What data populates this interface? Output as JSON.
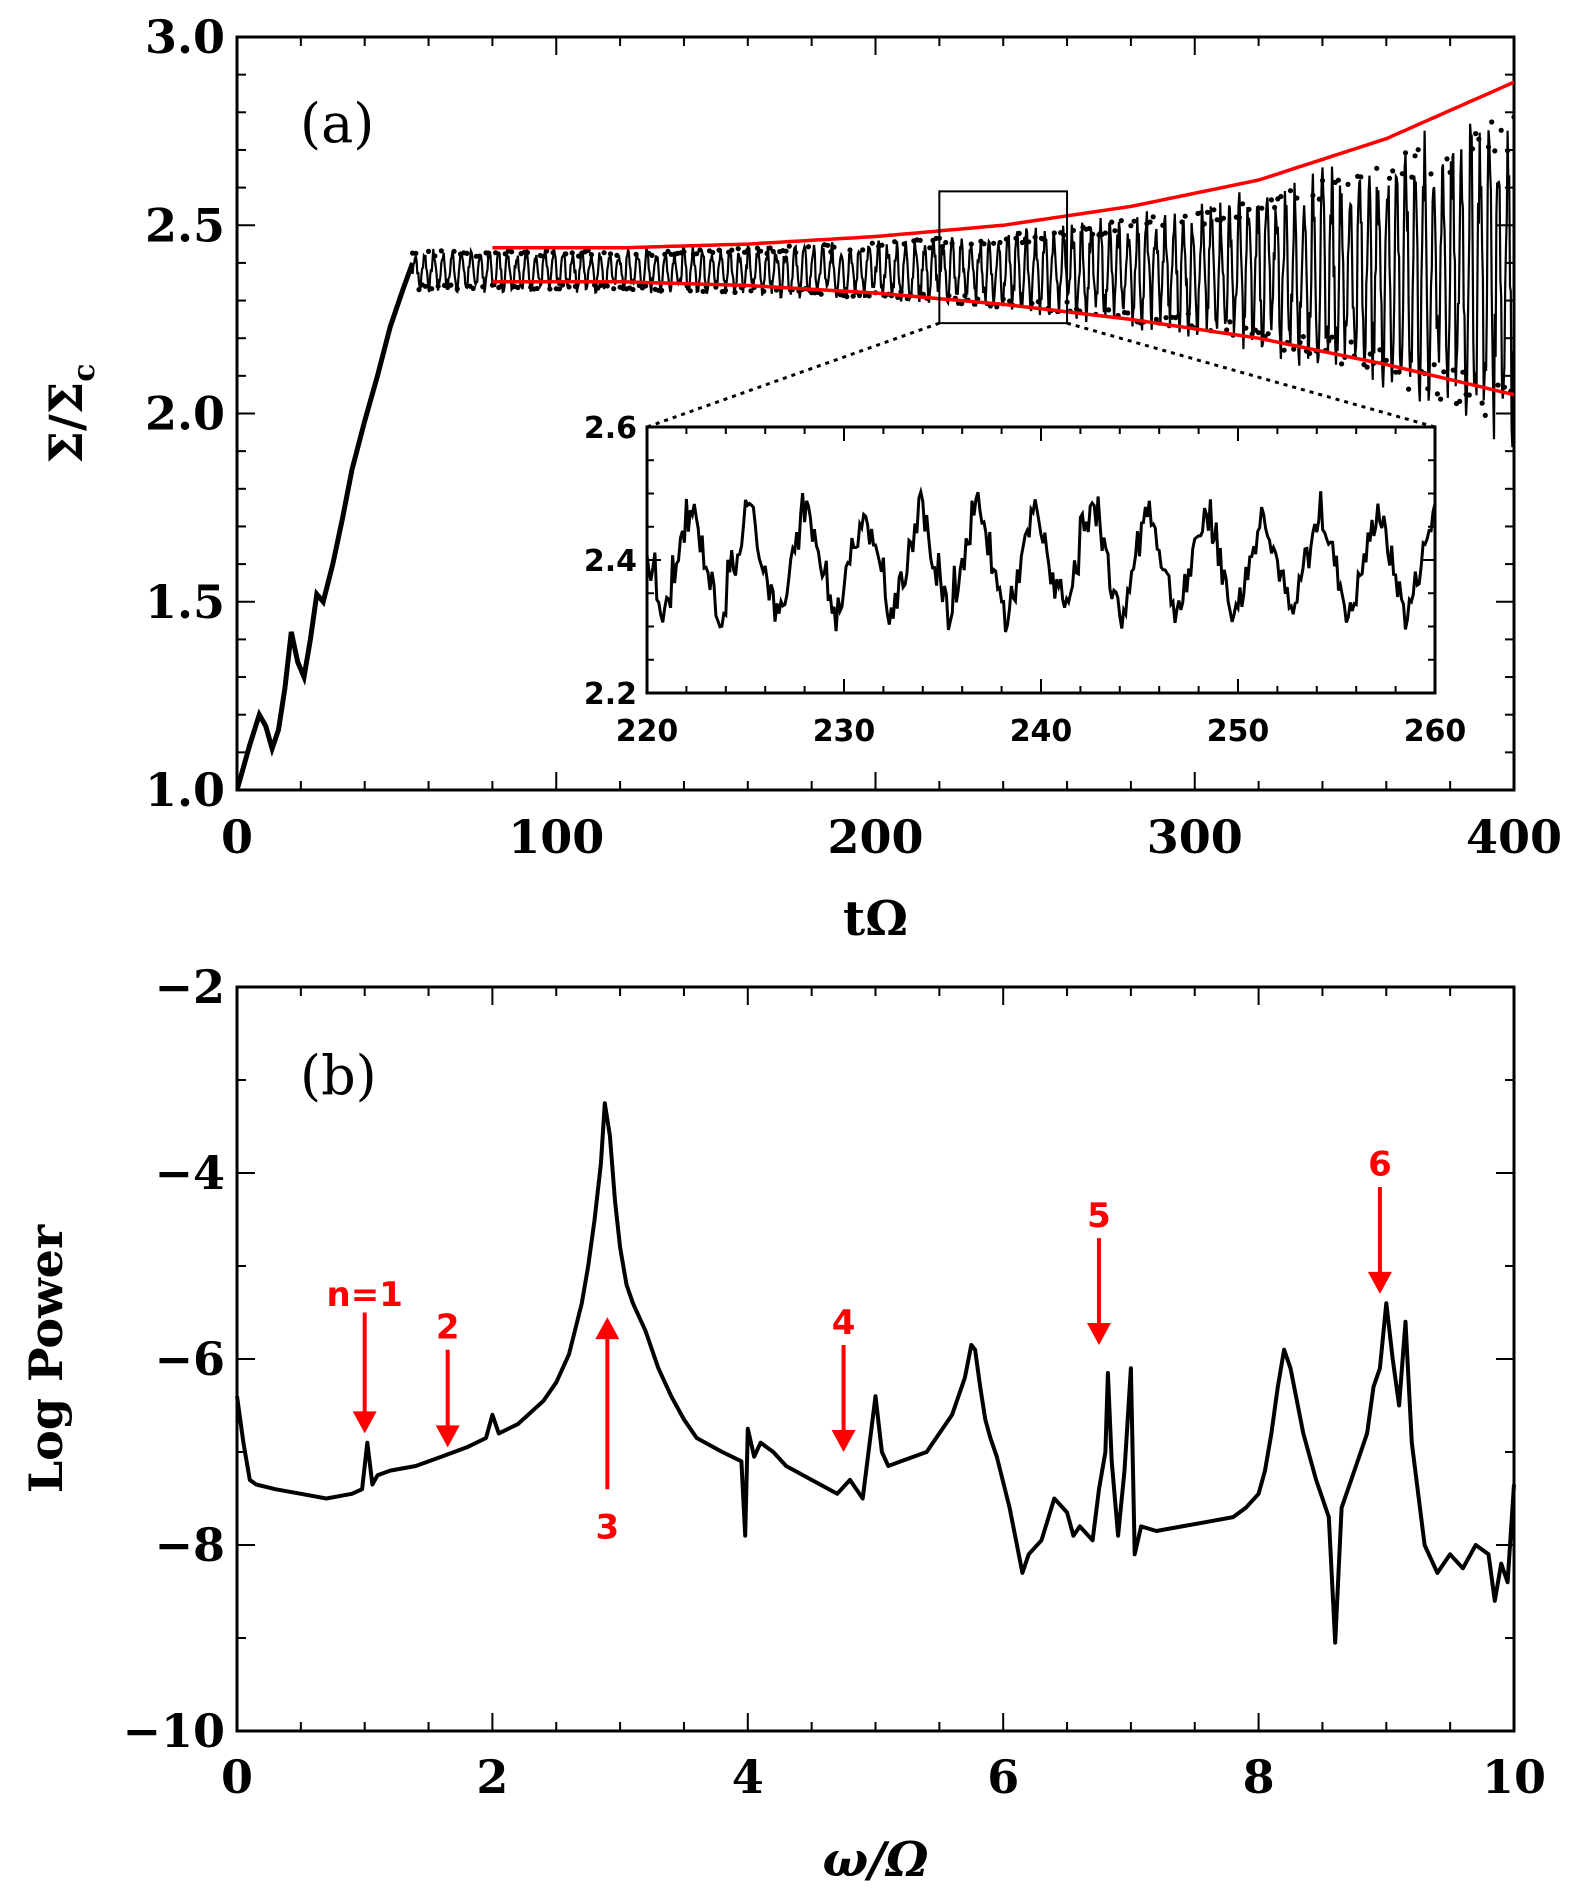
{
  "colors": {
    "data": "#000000",
    "envelope": "#ff0000",
    "annotation": "#ff0000",
    "axis": "#000000"
  },
  "chart_data": [
    {
      "type": "scatter",
      "panel_label": "(a)",
      "xlabel": "tΩ",
      "ylabel_base": "Σ/Σ",
      "ylabel_sub": "c",
      "xlim": [
        0,
        400
      ],
      "ylim": [
        1.0,
        3.0
      ],
      "xticks": [
        0,
        100,
        200,
        300,
        400
      ],
      "xtick_labels": [
        "0",
        "100",
        "200",
        "300",
        "400"
      ],
      "yticks": [
        1.0,
        1.5,
        2.0,
        2.5,
        3.0
      ],
      "ytick_labels": [
        "1.0",
        "1.5",
        "2.0",
        "2.5",
        "3.0"
      ],
      "series": [
        {
          "name": "growth",
          "x": [
            0,
            4,
            7,
            9,
            11,
            13,
            15,
            17,
            19,
            21,
            23,
            25,
            27,
            30,
            33,
            36,
            40,
            44,
            48,
            52,
            55
          ],
          "y": [
            1.0,
            1.12,
            1.2,
            1.17,
            1.11,
            1.16,
            1.27,
            1.42,
            1.34,
            1.3,
            1.4,
            1.52,
            1.5,
            1.6,
            1.72,
            1.85,
            1.98,
            2.1,
            2.23,
            2.33,
            2.4
          ]
        },
        {
          "name": "oscillation",
          "center": 2.38,
          "period": 2.9,
          "x_start": 55,
          "x_end": 400,
          "amplitude_x": [
            55,
            100,
            150,
            200,
            250,
            300,
            350,
            400
          ],
          "amplitude_y": [
            0.05,
            0.05,
            0.055,
            0.07,
            0.1,
            0.15,
            0.25,
            0.4
          ]
        },
        {
          "name": "upper envelope",
          "x": [
            80,
            120,
            160,
            200,
            240,
            280,
            320,
            360,
            400
          ],
          "y": [
            2.44,
            2.44,
            2.45,
            2.47,
            2.5,
            2.55,
            2.62,
            2.73,
            2.88
          ]
        },
        {
          "name": "lower envelope",
          "x": [
            80,
            120,
            160,
            200,
            240,
            280,
            320,
            360,
            400
          ],
          "y": [
            2.35,
            2.35,
            2.34,
            2.32,
            2.29,
            2.25,
            2.2,
            2.13,
            2.05
          ]
        }
      ],
      "zoom_box": {
        "x": [
          220,
          260
        ],
        "y": [
          2.24,
          2.59
        ]
      },
      "inset": {
        "xlim": [
          220,
          260
        ],
        "ylim": [
          2.2,
          2.6
        ],
        "xticks": [
          220,
          230,
          240,
          250,
          260
        ],
        "xtick_labels": [
          "220",
          "230",
          "240",
          "250",
          "260"
        ],
        "yticks": [
          2.2,
          2.4,
          2.6
        ],
        "ytick_labels": [
          "2.2",
          "2.4",
          "2.6"
        ],
        "period": 2.9,
        "center": 2.395,
        "high": 2.5,
        "low": 2.29
      }
    },
    {
      "type": "line",
      "panel_label": "(b)",
      "xlabel": "ω/Ω",
      "ylabel": "Log Power",
      "xlim": [
        0,
        10
      ],
      "ylim": [
        -10,
        -2
      ],
      "xticks": [
        0,
        2,
        4,
        6,
        8,
        10
      ],
      "xtick_labels": [
        "0",
        "2",
        "4",
        "6",
        "8",
        "10"
      ],
      "yticks": [
        -10,
        -8,
        -6,
        -4,
        -2
      ],
      "ytick_labels": [
        "−10",
        "−8",
        "−6",
        "−4",
        "−2"
      ],
      "x": [
        0.0,
        0.05,
        0.1,
        0.15,
        0.3,
        0.5,
        0.7,
        0.9,
        0.98,
        1.02,
        1.06,
        1.1,
        1.2,
        1.4,
        1.6,
        1.8,
        1.95,
        2.0,
        2.05,
        2.2,
        2.4,
        2.5,
        2.6,
        2.7,
        2.75,
        2.8,
        2.85,
        2.88,
        2.92,
        2.96,
        3.0,
        3.05,
        3.1,
        3.2,
        3.3,
        3.4,
        3.5,
        3.6,
        3.8,
        3.95,
        3.98,
        4.0,
        4.05,
        4.1,
        4.2,
        4.3,
        4.5,
        4.7,
        4.8,
        4.9,
        5.0,
        5.05,
        5.1,
        5.2,
        5.4,
        5.6,
        5.7,
        5.75,
        5.78,
        5.82,
        5.86,
        5.9,
        5.95,
        6.05,
        6.1,
        6.15,
        6.2,
        6.3,
        6.4,
        6.5,
        6.55,
        6.6,
        6.7,
        6.75,
        6.8,
        6.82,
        6.85,
        6.9,
        6.95,
        7.0,
        7.03,
        7.08,
        7.2,
        7.4,
        7.6,
        7.8,
        7.9,
        8.0,
        8.05,
        8.1,
        8.15,
        8.2,
        8.25,
        8.35,
        8.45,
        8.5,
        8.55,
        8.6,
        8.65,
        8.75,
        8.85,
        8.9,
        8.95,
        9.0,
        9.05,
        9.1,
        9.15,
        9.2,
        9.3,
        9.4,
        9.5,
        9.6,
        9.7,
        9.8,
        9.85,
        9.9,
        9.95,
        10.0
      ],
      "y": [
        -6.4,
        -6.9,
        -7.3,
        -7.35,
        -7.4,
        -7.45,
        -7.5,
        -7.45,
        -7.4,
        -6.9,
        -7.35,
        -7.25,
        -7.2,
        -7.15,
        -7.05,
        -6.95,
        -6.85,
        -6.6,
        -6.8,
        -6.7,
        -6.45,
        -6.25,
        -5.95,
        -5.4,
        -5.0,
        -4.5,
        -3.9,
        -3.25,
        -3.6,
        -4.3,
        -4.8,
        -5.2,
        -5.4,
        -5.7,
        -6.1,
        -6.4,
        -6.65,
        -6.85,
        -7.0,
        -7.1,
        -7.9,
        -6.75,
        -7.05,
        -6.9,
        -7.0,
        -7.15,
        -7.3,
        -7.45,
        -7.3,
        -7.5,
        -6.4,
        -7.0,
        -7.15,
        -7.1,
        -7.0,
        -6.6,
        -6.2,
        -5.85,
        -5.9,
        -6.3,
        -6.65,
        -6.85,
        -7.05,
        -7.6,
        -7.95,
        -8.3,
        -8.1,
        -7.95,
        -7.5,
        -7.65,
        -7.9,
        -7.8,
        -7.95,
        -7.4,
        -7.0,
        -6.15,
        -7.1,
        -7.9,
        -7.2,
        -6.1,
        -8.1,
        -7.8,
        -7.85,
        -7.8,
        -7.75,
        -7.7,
        -7.6,
        -7.45,
        -7.2,
        -6.8,
        -6.3,
        -5.9,
        -6.1,
        -6.8,
        -7.3,
        -7.5,
        -7.7,
        -9.05,
        -7.6,
        -7.2,
        -6.8,
        -6.3,
        -6.1,
        -5.4,
        -6.0,
        -6.5,
        -5.6,
        -6.9,
        -8.0,
        -8.3,
        -8.1,
        -8.25,
        -8.0,
        -8.1,
        -8.6,
        -8.2,
        -8.4,
        -7.35
      ],
      "annotations": [
        {
          "label": "n=1",
          "x": 1.0,
          "tail_y": -5.5,
          "head_y": -6.8,
          "dir": "down",
          "label_y": -5.3
        },
        {
          "label": "2",
          "x": 1.65,
          "tail_y": -5.9,
          "head_y": -6.95,
          "dir": "down",
          "label_y": -5.65
        },
        {
          "label": "3",
          "x": 2.9,
          "tail_y": -7.4,
          "head_y": -5.55,
          "dir": "up",
          "label_y": -7.8
        },
        {
          "label": "4",
          "x": 4.75,
          "tail_y": -5.85,
          "head_y": -7.0,
          "dir": "down",
          "label_y": -5.6
        },
        {
          "label": "5",
          "x": 6.75,
          "tail_y": -4.7,
          "head_y": -5.85,
          "dir": "down",
          "label_y": -4.45
        },
        {
          "label": "6",
          "x": 8.95,
          "tail_y": -4.15,
          "head_y": -5.3,
          "dir": "down",
          "label_y": -3.9
        }
      ]
    }
  ]
}
